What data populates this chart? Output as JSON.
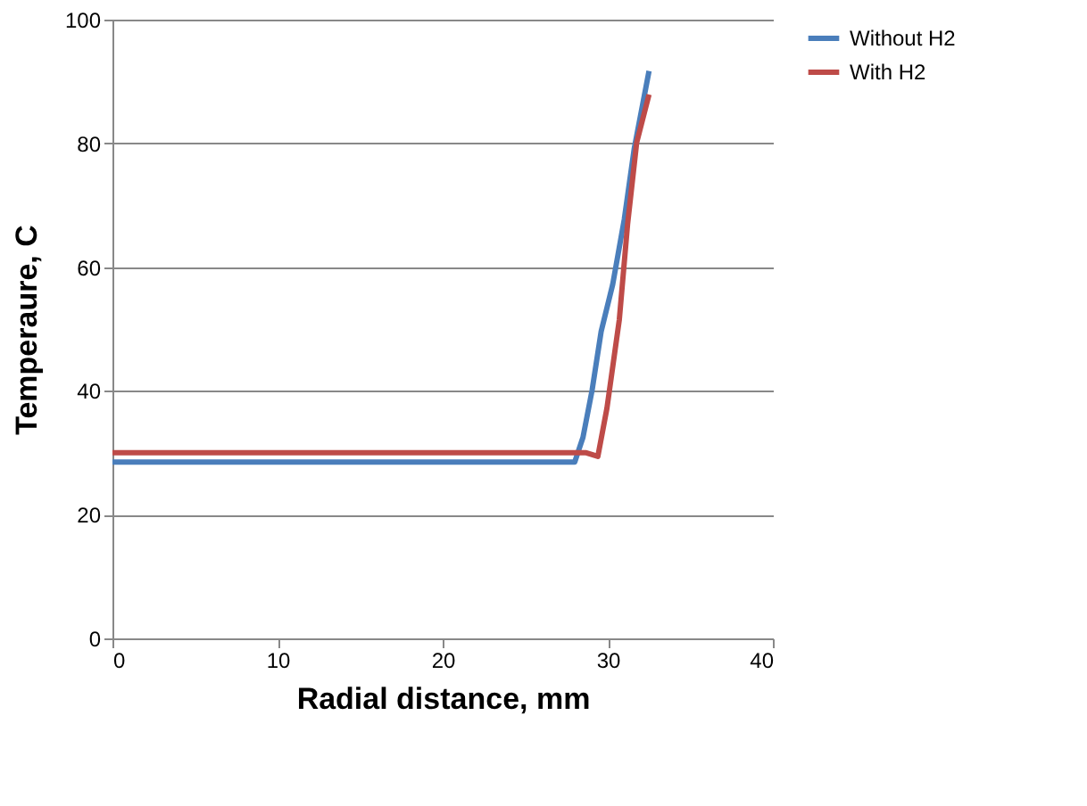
{
  "chart_data": {
    "type": "line",
    "xlabel": "Radial distance, mm",
    "ylabel": "Temperaure, C",
    "xlim": [
      0,
      40
    ],
    "xticks": [
      0,
      10,
      20,
      30,
      40
    ],
    "ylim": [
      0,
      100
    ],
    "yticks": [
      0,
      20,
      40,
      60,
      80,
      100
    ],
    "grid": "y",
    "legend": "right",
    "marker": "none",
    "line_style": "solid",
    "series": [
      {
        "name": "Without H2",
        "color": "#4a7ebb",
        "x": [
          0,
          28,
          28.5,
          29.05,
          29.6,
          30.3,
          31.0,
          31.6,
          32.5
        ],
        "values": [
          28.5,
          28.5,
          32.5,
          40.1,
          49.6,
          57.2,
          67.7,
          79.1,
          91.7
        ]
      },
      {
        "name": "With H2",
        "color": "#be4b48",
        "x": [
          0,
          28.7,
          29.4,
          29.95,
          30.7,
          31.2,
          31.75,
          32.5
        ],
        "values": [
          30,
          30,
          29.4,
          37.2,
          51.5,
          66.9,
          80.1,
          87.9
        ]
      }
    ]
  }
}
